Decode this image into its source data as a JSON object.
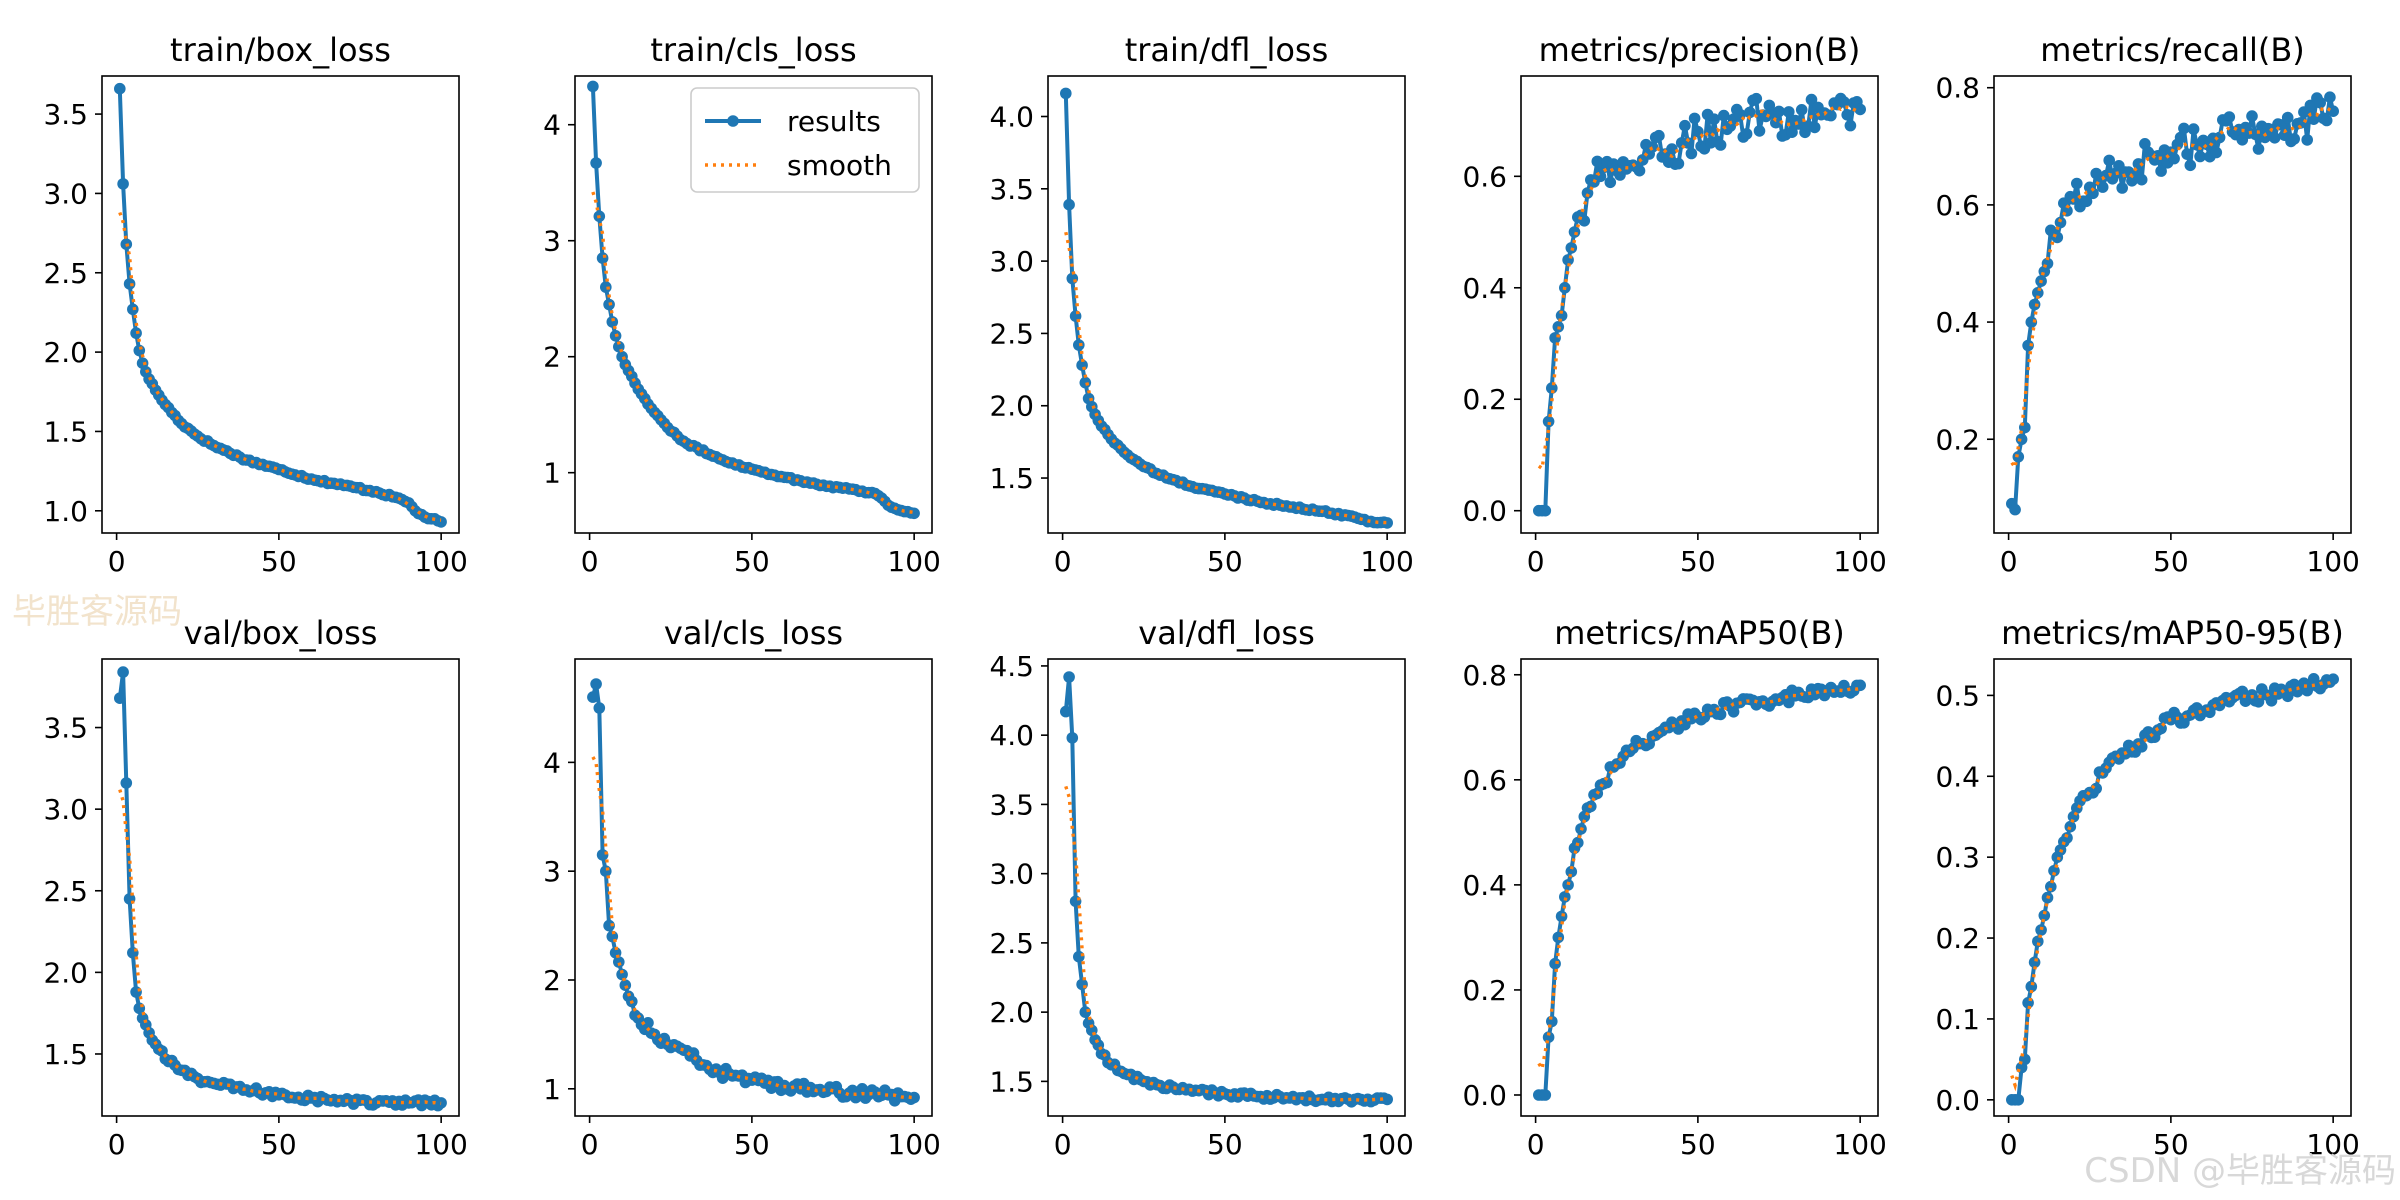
{
  "figure": {
    "watermark_top": "毕胜客源码",
    "watermark_bottom": "CSDN @毕胜客源码",
    "legend": {
      "results": "results",
      "smooth": "smooth",
      "placement": "upper-right of train/cls_loss panel"
    }
  },
  "colors": {
    "results": "#1f77b4",
    "smooth": "#ff7f0e",
    "axes": "#000000",
    "background": "#ffffff"
  },
  "chart_data": [
    {
      "type": "line",
      "title": "train/box_loss",
      "x_range": [
        1,
        100
      ],
      "xlim": [
        -4.5,
        105.5
      ],
      "ylim": [
        0.86,
        3.74
      ],
      "xticks": [
        0,
        50,
        100
      ],
      "xtick_labels": [
        "0",
        "50",
        "100"
      ],
      "yticks": [
        1.0,
        1.5,
        2.0,
        2.5,
        3.0,
        3.5
      ],
      "ytick_labels": [
        "1.0",
        "1.5",
        "2.0",
        "2.5",
        "3.0",
        "3.5"
      ],
      "anchors": [
        [
          1,
          3.66
        ],
        [
          2,
          3.06
        ],
        [
          3,
          2.68
        ],
        [
          4,
          2.43
        ],
        [
          5,
          2.27
        ],
        [
          6,
          2.12
        ],
        [
          7,
          2.01
        ],
        [
          8,
          1.93
        ],
        [
          10,
          1.83
        ],
        [
          12,
          1.76
        ],
        [
          15,
          1.67
        ],
        [
          20,
          1.55
        ],
        [
          25,
          1.47
        ],
        [
          30,
          1.41
        ],
        [
          40,
          1.32
        ],
        [
          50,
          1.26
        ],
        [
          60,
          1.2
        ],
        [
          70,
          1.16
        ],
        [
          80,
          1.12
        ],
        [
          88,
          1.07
        ],
        [
          90,
          1.05
        ],
        [
          92,
          1.0
        ],
        [
          95,
          0.96
        ],
        [
          100,
          0.93
        ]
      ],
      "noise": 0.008,
      "smooth_start": [
        1,
        2.88
      ],
      "legend": false
    },
    {
      "type": "line",
      "title": "train/cls_loss",
      "x_range": [
        1,
        100
      ],
      "xlim": [
        -4.5,
        105.5
      ],
      "ylim": [
        0.48,
        4.42
      ],
      "xticks": [
        0,
        50,
        100
      ],
      "xtick_labels": [
        "0",
        "50",
        "100"
      ],
      "yticks": [
        1,
        2,
        3,
        4
      ],
      "ytick_labels": [
        "1",
        "2",
        "3",
        "4"
      ],
      "anchors": [
        [
          1,
          4.33
        ],
        [
          2,
          3.67
        ],
        [
          3,
          3.21
        ],
        [
          4,
          2.85
        ],
        [
          5,
          2.6
        ],
        [
          6,
          2.45
        ],
        [
          7,
          2.3
        ],
        [
          8,
          2.18
        ],
        [
          10,
          2.0
        ],
        [
          12,
          1.88
        ],
        [
          15,
          1.72
        ],
        [
          20,
          1.52
        ],
        [
          25,
          1.36
        ],
        [
          30,
          1.25
        ],
        [
          40,
          1.12
        ],
        [
          50,
          1.03
        ],
        [
          60,
          0.96
        ],
        [
          70,
          0.9
        ],
        [
          80,
          0.86
        ],
        [
          88,
          0.82
        ],
        [
          90,
          0.78
        ],
        [
          92,
          0.72
        ],
        [
          95,
          0.68
        ],
        [
          100,
          0.65
        ]
      ],
      "noise": 0.01,
      "smooth_start": [
        1,
        3.42
      ],
      "legend": true
    },
    {
      "type": "line",
      "title": "train/dfl_loss",
      "x_range": [
        1,
        100
      ],
      "xlim": [
        -4.5,
        105.5
      ],
      "ylim": [
        1.12,
        4.28
      ],
      "xticks": [
        0,
        50,
        100
      ],
      "xtick_labels": [
        "0",
        "50",
        "100"
      ],
      "yticks": [
        1.5,
        2.0,
        2.5,
        3.0,
        3.5,
        4.0
      ],
      "ytick_labels": [
        "1.5",
        "2.0",
        "2.5",
        "3.0",
        "3.5",
        "4.0"
      ],
      "anchors": [
        [
          1,
          4.16
        ],
        [
          2,
          3.39
        ],
        [
          3,
          2.88
        ],
        [
          4,
          2.62
        ],
        [
          5,
          2.42
        ],
        [
          6,
          2.28
        ],
        [
          7,
          2.16
        ],
        [
          8,
          2.05
        ],
        [
          10,
          1.94
        ],
        [
          12,
          1.86
        ],
        [
          15,
          1.77
        ],
        [
          20,
          1.66
        ],
        [
          25,
          1.58
        ],
        [
          30,
          1.52
        ],
        [
          40,
          1.44
        ],
        [
          50,
          1.39
        ],
        [
          60,
          1.34
        ],
        [
          70,
          1.3
        ],
        [
          80,
          1.27
        ],
        [
          90,
          1.23
        ],
        [
          95,
          1.2
        ],
        [
          100,
          1.19
        ]
      ],
      "noise": 0.008,
      "smooth_start": [
        1,
        3.2
      ],
      "legend": false
    },
    {
      "type": "line",
      "title": "metrics/precision(B)",
      "x_range": [
        1,
        100
      ],
      "xlim": [
        -4.5,
        105.5
      ],
      "ylim": [
        -0.04,
        0.78
      ],
      "xticks": [
        0,
        50,
        100
      ],
      "xtick_labels": [
        "0",
        "50",
        "100"
      ],
      "yticks": [
        0.0,
        0.2,
        0.4,
        0.6
      ],
      "ytick_labels": [
        "0.0",
        "0.2",
        "0.4",
        "0.6"
      ],
      "anchors": [
        [
          1,
          0.0
        ],
        [
          2,
          0.0
        ],
        [
          3,
          0.0
        ],
        [
          4,
          0.16
        ],
        [
          5,
          0.22
        ],
        [
          6,
          0.31
        ],
        [
          7,
          0.33
        ],
        [
          8,
          0.35
        ],
        [
          9,
          0.4
        ],
        [
          10,
          0.45
        ],
        [
          12,
          0.5
        ],
        [
          14,
          0.53
        ],
        [
          16,
          0.57
        ],
        [
          18,
          0.59
        ],
        [
          20,
          0.6
        ],
        [
          25,
          0.61
        ],
        [
          30,
          0.62
        ],
        [
          35,
          0.64
        ],
        [
          40,
          0.64
        ],
        [
          45,
          0.66
        ],
        [
          50,
          0.68
        ],
        [
          60,
          0.69
        ],
        [
          70,
          0.71
        ],
        [
          80,
          0.7
        ],
        [
          90,
          0.71
        ],
        [
          100,
          0.72
        ]
      ],
      "noise": 0.035,
      "smooth_start": [
        1,
        0.08
      ],
      "legend": false
    },
    {
      "type": "line",
      "title": "metrics/recall(B)",
      "x_range": [
        1,
        100
      ],
      "xlim": [
        -4.5,
        105.5
      ],
      "ylim": [
        0.04,
        0.82
      ],
      "xticks": [
        0,
        50,
        100
      ],
      "xtick_labels": [
        "0",
        "50",
        "100"
      ],
      "yticks": [
        0.2,
        0.4,
        0.6,
        0.8
      ],
      "ytick_labels": [
        "0.2",
        "0.4",
        "0.6",
        "0.8"
      ],
      "anchors": [
        [
          1,
          0.09
        ],
        [
          2,
          0.08
        ],
        [
          3,
          0.17
        ],
        [
          4,
          0.2
        ],
        [
          5,
          0.22
        ],
        [
          6,
          0.36
        ],
        [
          7,
          0.4
        ],
        [
          8,
          0.43
        ],
        [
          9,
          0.45
        ],
        [
          10,
          0.47
        ],
        [
          12,
          0.5
        ],
        [
          14,
          0.55
        ],
        [
          16,
          0.57
        ],
        [
          18,
          0.59
        ],
        [
          20,
          0.61
        ],
        [
          25,
          0.63
        ],
        [
          30,
          0.65
        ],
        [
          40,
          0.67
        ],
        [
          50,
          0.69
        ],
        [
          60,
          0.71
        ],
        [
          70,
          0.72
        ],
        [
          80,
          0.73
        ],
        [
          90,
          0.74
        ],
        [
          100,
          0.76
        ]
      ],
      "noise": 0.035,
      "smooth_start": [
        1,
        0.16
      ],
      "legend": false
    },
    {
      "type": "line",
      "title": "val/box_loss",
      "x_range": [
        1,
        100
      ],
      "xlim": [
        -4.5,
        105.5
      ],
      "ylim": [
        1.12,
        3.92
      ],
      "xticks": [
        0,
        50,
        100
      ],
      "xtick_labels": [
        "0",
        "50",
        "100"
      ],
      "yticks": [
        1.5,
        2.0,
        2.5,
        3.0,
        3.5
      ],
      "ytick_labels": [
        "1.5",
        "2.0",
        "2.5",
        "3.0",
        "3.5"
      ],
      "anchors": [
        [
          1,
          3.68
        ],
        [
          2,
          3.84
        ],
        [
          3,
          3.16
        ],
        [
          4,
          2.45
        ],
        [
          5,
          2.12
        ],
        [
          6,
          1.88
        ],
        [
          7,
          1.78
        ],
        [
          8,
          1.72
        ],
        [
          10,
          1.63
        ],
        [
          12,
          1.56
        ],
        [
          15,
          1.47
        ],
        [
          20,
          1.4
        ],
        [
          25,
          1.35
        ],
        [
          30,
          1.32
        ],
        [
          40,
          1.28
        ],
        [
          50,
          1.25
        ],
        [
          60,
          1.23
        ],
        [
          70,
          1.21
        ],
        [
          80,
          1.2
        ],
        [
          90,
          1.2
        ],
        [
          100,
          1.2
        ]
      ],
      "noise": 0.02,
      "smooth_start": [
        1,
        3.12
      ],
      "legend": false
    },
    {
      "type": "line",
      "title": "val/cls_loss",
      "x_range": [
        1,
        100
      ],
      "xlim": [
        -4.5,
        105.5
      ],
      "ylim": [
        0.75,
        4.95
      ],
      "xticks": [
        0,
        50,
        100
      ],
      "xtick_labels": [
        "0",
        "50",
        "100"
      ],
      "yticks": [
        1,
        2,
        3,
        4
      ],
      "ytick_labels": [
        "1",
        "2",
        "3",
        "4"
      ],
      "anchors": [
        [
          1,
          4.6
        ],
        [
          2,
          4.72
        ],
        [
          3,
          4.5
        ],
        [
          4,
          3.15
        ],
        [
          5,
          3.0
        ],
        [
          6,
          2.5
        ],
        [
          7,
          2.4
        ],
        [
          8,
          2.25
        ],
        [
          10,
          2.05
        ],
        [
          12,
          1.85
        ],
        [
          15,
          1.65
        ],
        [
          20,
          1.5
        ],
        [
          25,
          1.38
        ],
        [
          30,
          1.35
        ],
        [
          35,
          1.22
        ],
        [
          40,
          1.15
        ],
        [
          50,
          1.08
        ],
        [
          60,
          1.03
        ],
        [
          70,
          0.99
        ],
        [
          80,
          0.96
        ],
        [
          90,
          0.94
        ],
        [
          100,
          0.92
        ]
      ],
      "noise": 0.05,
      "smooth_start": [
        1,
        4.05
      ],
      "legend": false
    },
    {
      "type": "line",
      "title": "val/dfl_loss",
      "x_range": [
        1,
        100
      ],
      "xlim": [
        -4.5,
        105.5
      ],
      "ylim": [
        1.25,
        4.55
      ],
      "xticks": [
        0,
        50,
        100
      ],
      "xtick_labels": [
        "0",
        "50",
        "100"
      ],
      "yticks": [
        1.5,
        2.0,
        2.5,
        3.0,
        3.5,
        4.0,
        4.5
      ],
      "ytick_labels": [
        "1.5",
        "2.0",
        "2.5",
        "3.0",
        "3.5",
        "4.0",
        "4.5"
      ],
      "anchors": [
        [
          1,
          4.17
        ],
        [
          2,
          4.42
        ],
        [
          3,
          3.98
        ],
        [
          4,
          2.8
        ],
        [
          5,
          2.4
        ],
        [
          6,
          2.2
        ],
        [
          7,
          2.0
        ],
        [
          8,
          1.92
        ],
        [
          10,
          1.8
        ],
        [
          12,
          1.7
        ],
        [
          15,
          1.62
        ],
        [
          20,
          1.55
        ],
        [
          25,
          1.5
        ],
        [
          30,
          1.47
        ],
        [
          40,
          1.43
        ],
        [
          50,
          1.41
        ],
        [
          60,
          1.39
        ],
        [
          70,
          1.38
        ],
        [
          80,
          1.37
        ],
        [
          90,
          1.37
        ],
        [
          100,
          1.37
        ]
      ],
      "noise": 0.02,
      "smooth_start": [
        1,
        3.63
      ],
      "legend": false
    },
    {
      "type": "line",
      "title": "metrics/mAP50(B)",
      "x_range": [
        1,
        100
      ],
      "xlim": [
        -4.5,
        105.5
      ],
      "ylim": [
        -0.04,
        0.83
      ],
      "xticks": [
        0,
        50,
        100
      ],
      "xtick_labels": [
        "0",
        "50",
        "100"
      ],
      "yticks": [
        0.0,
        0.2,
        0.4,
        0.6,
        0.8
      ],
      "ytick_labels": [
        "0.0",
        "0.2",
        "0.4",
        "0.6",
        "0.8"
      ],
      "anchors": [
        [
          1,
          0.0
        ],
        [
          2,
          0.0
        ],
        [
          3,
          0.0
        ],
        [
          4,
          0.11
        ],
        [
          5,
          0.14
        ],
        [
          6,
          0.25
        ],
        [
          7,
          0.3
        ],
        [
          8,
          0.34
        ],
        [
          10,
          0.4
        ],
        [
          12,
          0.47
        ],
        [
          15,
          0.53
        ],
        [
          20,
          0.59
        ],
        [
          25,
          0.63
        ],
        [
          30,
          0.66
        ],
        [
          40,
          0.7
        ],
        [
          50,
          0.72
        ],
        [
          60,
          0.74
        ],
        [
          70,
          0.75
        ],
        [
          80,
          0.76
        ],
        [
          90,
          0.77
        ],
        [
          100,
          0.78
        ]
      ],
      "noise": 0.012,
      "smooth_start": [
        1,
        0.06
      ],
      "legend": false
    },
    {
      "type": "line",
      "title": "metrics/mAP50-95(B)",
      "x_range": [
        1,
        100
      ],
      "xlim": [
        -4.5,
        105.5
      ],
      "ylim": [
        -0.02,
        0.545
      ],
      "xticks": [
        0,
        50,
        100
      ],
      "xtick_labels": [
        "0",
        "50",
        "100"
      ],
      "yticks": [
        0.0,
        0.1,
        0.2,
        0.3,
        0.4,
        0.5
      ],
      "ytick_labels": [
        "0.0",
        "0.1",
        "0.2",
        "0.3",
        "0.4",
        "0.5"
      ],
      "anchors": [
        [
          1,
          0.0
        ],
        [
          2,
          0.0
        ],
        [
          3,
          0.0
        ],
        [
          4,
          0.04
        ],
        [
          5,
          0.05
        ],
        [
          6,
          0.12
        ],
        [
          7,
          0.14
        ],
        [
          8,
          0.17
        ],
        [
          10,
          0.21
        ],
        [
          12,
          0.25
        ],
        [
          15,
          0.3
        ],
        [
          20,
          0.35
        ],
        [
          25,
          0.38
        ],
        [
          30,
          0.41
        ],
        [
          40,
          0.44
        ],
        [
          50,
          0.47
        ],
        [
          60,
          0.48
        ],
        [
          70,
          0.5
        ],
        [
          80,
          0.5
        ],
        [
          90,
          0.51
        ],
        [
          100,
          0.52
        ]
      ],
      "noise": 0.008,
      "smooth_start": [
        1,
        0.03
      ],
      "legend": false
    }
  ]
}
